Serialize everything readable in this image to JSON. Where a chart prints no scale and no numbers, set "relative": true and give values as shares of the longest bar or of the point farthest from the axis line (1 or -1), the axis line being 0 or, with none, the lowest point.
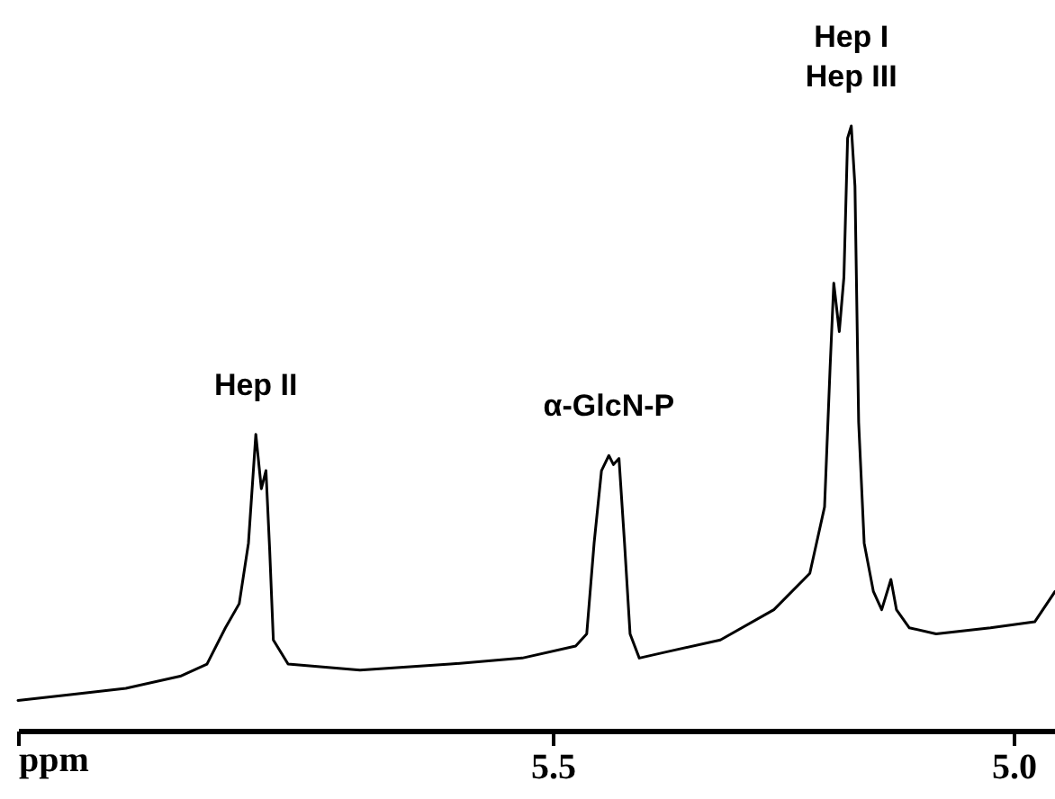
{
  "chart_data": {
    "type": "line",
    "relative": true,
    "xlabel": "ppm",
    "xlim": [
      6.08,
      4.955
    ],
    "xticks": [
      {
        "value": 6.08,
        "label": null
      },
      5.5,
      {
        "value": 5.0,
        "label": "5.0"
      }
    ],
    "x": [
      6.08,
      6.021,
      5.963,
      5.904,
      5.875,
      5.855,
      5.84,
      5.83,
      5.826,
      5.822,
      5.816,
      5.811,
      5.807,
      5.803,
      5.787,
      5.709,
      5.611,
      5.533,
      5.475,
      5.463,
      5.455,
      5.447,
      5.439,
      5.434,
      5.428,
      5.422,
      5.416,
      5.406,
      5.377,
      5.318,
      5.26,
      5.221,
      5.205,
      5.199,
      5.195,
      5.189,
      5.184,
      5.18,
      5.176,
      5.172,
      5.168,
      5.162,
      5.152,
      5.143,
      5.133,
      5.127,
      5.113,
      5.084,
      5.025,
      4.977,
      4.955
    ],
    "series": [
      {
        "color": "#000000",
        "values": [
          0.05,
          0.06,
          0.07,
          0.09,
          0.11,
          0.17,
          0.21,
          0.31,
          0.4,
          0.49,
          0.4,
          0.43,
          0.3,
          0.15,
          0.11,
          0.1,
          0.11,
          0.12,
          0.14,
          0.16,
          0.31,
          0.43,
          0.455,
          0.44,
          0.45,
          0.31,
          0.16,
          0.12,
          0.13,
          0.15,
          0.2,
          0.26,
          0.37,
          0.6,
          0.74,
          0.66,
          0.75,
          0.98,
          1.0,
          0.9,
          0.51,
          0.31,
          0.23,
          0.2,
          0.25,
          0.2,
          0.17,
          0.16,
          0.17,
          0.18,
          0.23
        ]
      }
    ],
    "annotations": [
      {
        "text": "Hep II",
        "x": 5.822,
        "y": 0.49
      },
      {
        "text": "α-GlcN-P",
        "x": 5.439,
        "y": 0.455
      },
      {
        "text": "Hep I\nHep III",
        "x": 5.176,
        "y": 1.0
      }
    ],
    "grid": false,
    "legend": false,
    "marker": "none",
    "line_style": "solid"
  }
}
